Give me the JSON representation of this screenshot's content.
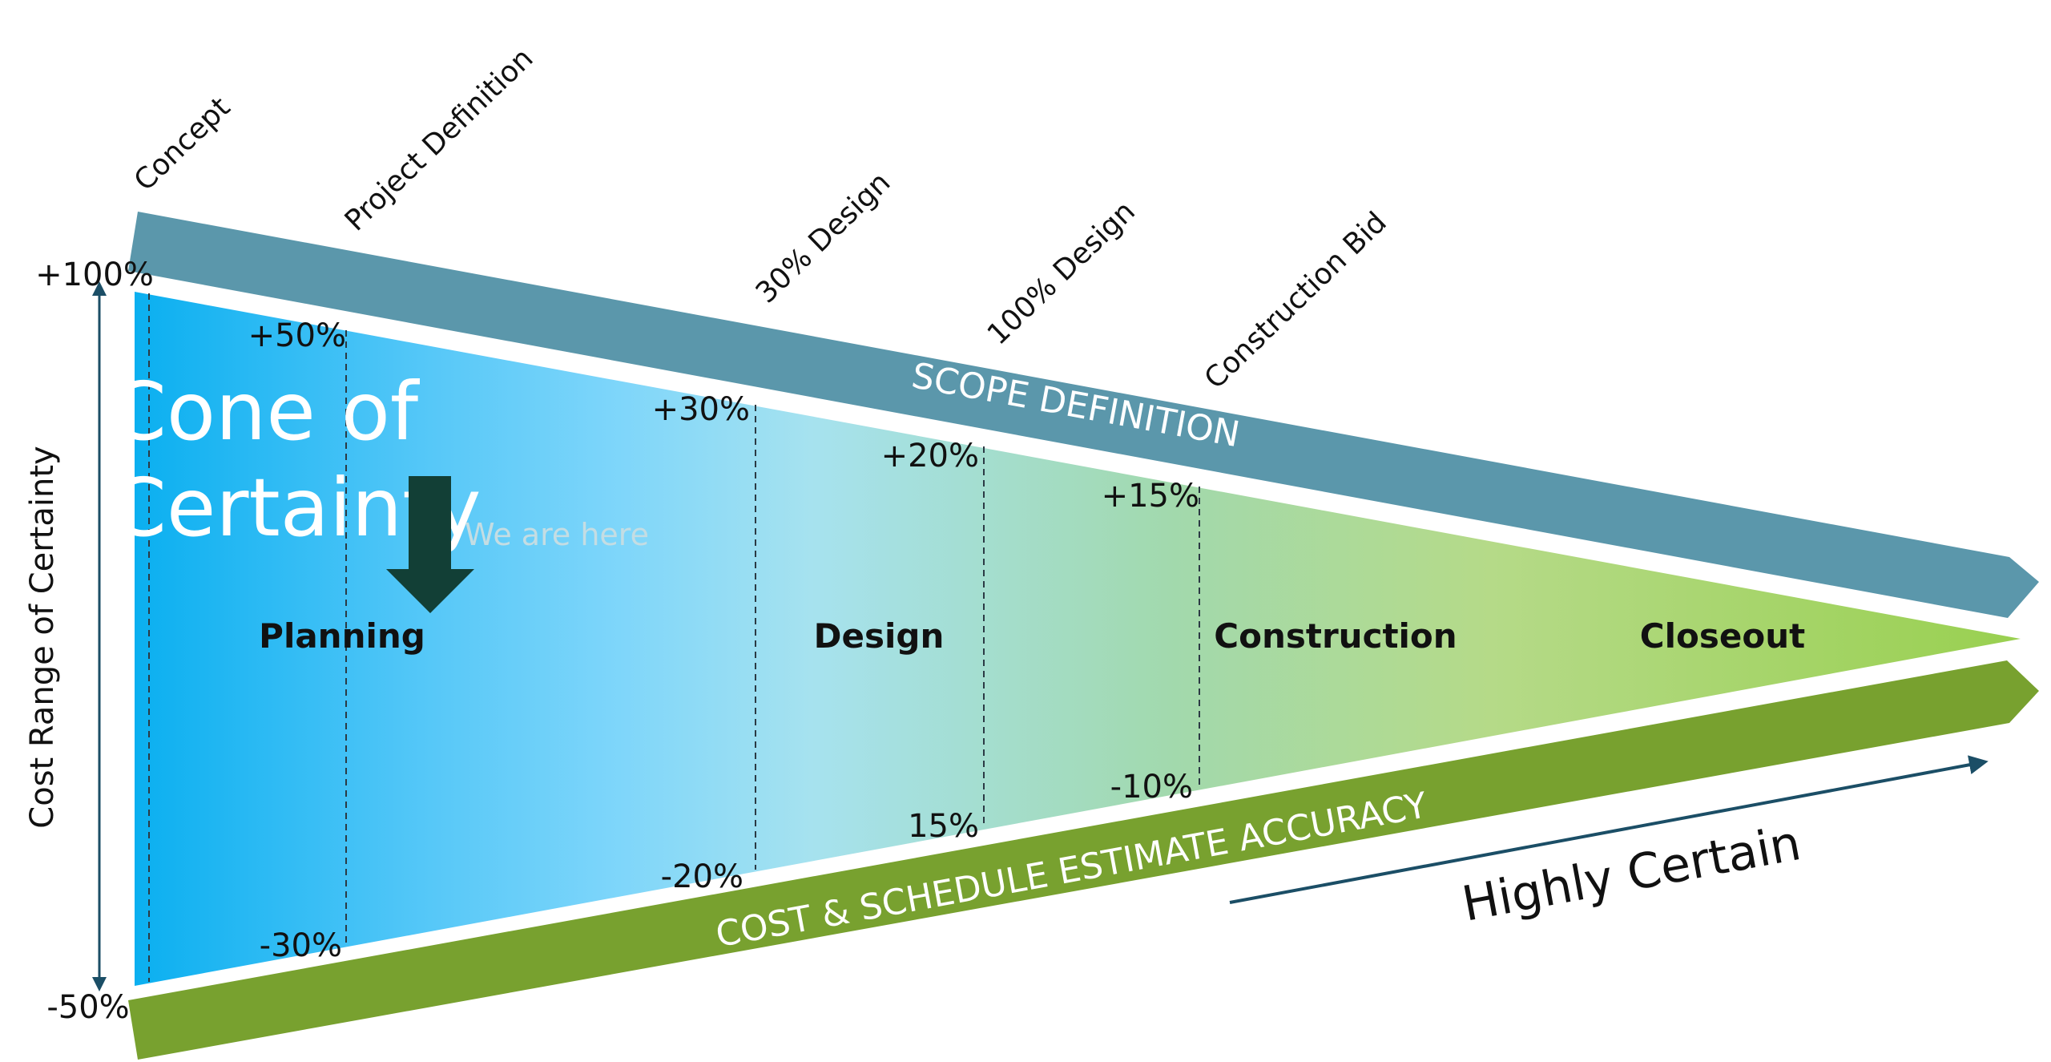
{
  "title_line1": "Cone of",
  "title_line2": "Certainty",
  "we_are_here": "We are here",
  "y_axis_label": "Cost Range of Certainty",
  "y_axis_top": "+100%",
  "y_axis_bottom": "-50%",
  "milestones": [
    {
      "label": "Concept",
      "upper": "",
      "lower": ""
    },
    {
      "label": "Project Definition",
      "upper": "+50%",
      "lower": "-30%"
    },
    {
      "label": "30% Design",
      "upper": "+30%",
      "lower": "-20%"
    },
    {
      "label": "100% Design",
      "upper": "+20%",
      "lower": "15%"
    },
    {
      "label": "Construction Bid",
      "upper": "+15%",
      "lower": "-10%"
    }
  ],
  "phases": [
    "Planning",
    "Design",
    "Construction",
    "Closeout"
  ],
  "band_top": "SCOPE DEFINITION",
  "band_bottom": "COST & SCHEDULE ESTIMATE ACCURACY",
  "trend_label": "Highly Certain",
  "colors": {
    "scope_band": "#5b97ab",
    "accuracy_band": "#78a12f",
    "arrow": "#123f36",
    "axis": "#1b4e66",
    "cone_start": "#0aaff0",
    "cone_mid": "#a6e2ef",
    "cone_end": "#99d050"
  }
}
